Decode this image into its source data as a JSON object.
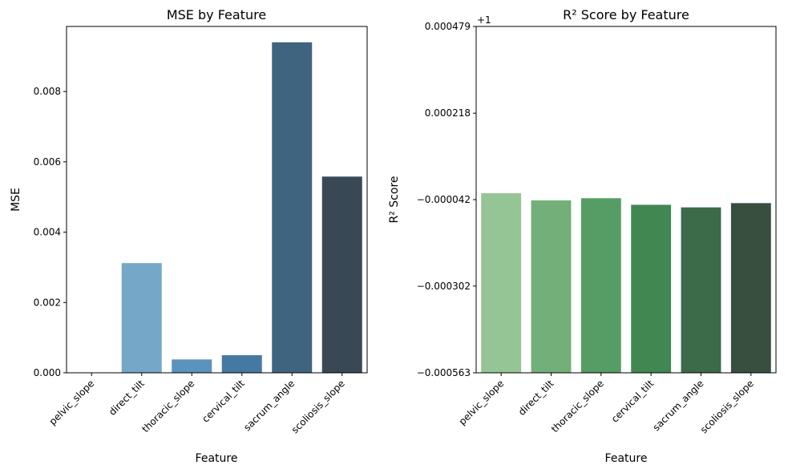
{
  "chart_data": [
    {
      "type": "bar",
      "title": "MSE by Feature",
      "xlabel": "Feature",
      "ylabel": "MSE",
      "categories": [
        "pelvic_slope",
        "direct_tilt",
        "thoracic_slope",
        "cervical_tilt",
        "sacrum_angle",
        "scoliosis_slope"
      ],
      "values": [
        0.0,
        0.00312,
        0.00038,
        0.0005,
        0.0094,
        0.00558
      ],
      "ylim": [
        0,
        0.00985
      ],
      "yticks": [
        0,
        0.002,
        0.004,
        0.006,
        0.008
      ],
      "ytick_labels": [
        "0.000",
        "0.002",
        "0.004",
        "0.006",
        "0.008"
      ],
      "colors": [
        "#8cbad8",
        "#75a8c8",
        "#5a93bd",
        "#4679a2",
        "#3f6480",
        "#384955"
      ],
      "grid": false,
      "legend": "none"
    },
    {
      "type": "bar",
      "title": "R² Score by Feature",
      "xlabel": "Feature",
      "ylabel": "R² Score",
      "offset_text": "+1",
      "categories": [
        "pelvic_slope",
        "direct_tilt",
        "thoracic_slope",
        "cervical_tilt",
        "sacrum_angle",
        "scoliosis_slope"
      ],
      "values": [
        -2.28e-05,
        -4.43e-05,
        -3.78e-05,
        -5.75e-05,
        -6.53e-05,
        -5.25e-05
      ],
      "ylim": [
        -0.000563,
        0.000479
      ],
      "yticks": [
        -0.000563,
        -0.000302,
        -4.2e-05,
        0.000218,
        0.000479
      ],
      "ytick_labels": [
        "−0.000563",
        "−0.000302",
        "−0.000042",
        "0.000218",
        "0.000479"
      ],
      "colors": [
        "#95c595",
        "#73af78",
        "#559d65",
        "#418752",
        "#3b6b49",
        "#384f40"
      ],
      "grid": false,
      "legend": "none"
    }
  ]
}
